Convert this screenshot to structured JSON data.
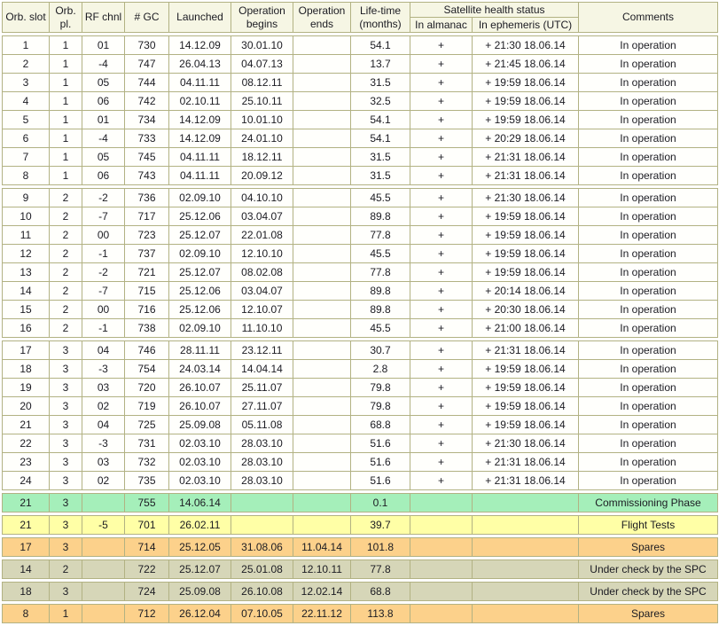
{
  "colors": {
    "border": "#b2b283",
    "header_bg": "#f6f6e4",
    "in_operation_bg": "#fffffc",
    "commissioning_bg": "#a5efba",
    "flight_tests_bg": "#ffffa6",
    "spares_bg": "#fcd18b",
    "under_check_bg": "#d6d6b8",
    "text": "#1b1b22"
  },
  "table": {
    "health_group_label": "Satellite health status",
    "columns": [
      {
        "key": "slot",
        "label": "Orb. slot"
      },
      {
        "key": "plane",
        "label": "Orb. pl."
      },
      {
        "key": "rf-chnl",
        "label": "RF chnl"
      },
      {
        "key": "gc",
        "label": "# GC"
      },
      {
        "key": "launched",
        "label": "Launched"
      },
      {
        "key": "op-begins",
        "label": "Operation begins"
      },
      {
        "key": "op-ends",
        "label": "Operation ends"
      },
      {
        "key": "lifetime",
        "label": "Life-time (months)"
      },
      {
        "key": "almanac",
        "label": "In almanac"
      },
      {
        "key": "ephemeris",
        "label": "In ephemeris (UTC)"
      },
      {
        "key": "comments",
        "label": "Comments"
      }
    ],
    "blocks": [
      {
        "name": "plane-1",
        "style": "normal",
        "rows": [
          [
            "1",
            "1",
            "01",
            "730",
            "14.12.09",
            "30.01.10",
            "",
            "54.1",
            "+",
            "+ 21:30 18.06.14",
            "In operation"
          ],
          [
            "2",
            "1",
            "-4",
            "747",
            "26.04.13",
            "04.07.13",
            "",
            "13.7",
            "+",
            "+ 21:45 18.06.14",
            "In operation"
          ],
          [
            "3",
            "1",
            "05",
            "744",
            "04.11.11",
            "08.12.11",
            "",
            "31.5",
            "+",
            "+ 19:59 18.06.14",
            "In operation"
          ],
          [
            "4",
            "1",
            "06",
            "742",
            "02.10.11",
            "25.10.11",
            "",
            "32.5",
            "+",
            "+ 19:59 18.06.14",
            "In operation"
          ],
          [
            "5",
            "1",
            "01",
            "734",
            "14.12.09",
            "10.01.10",
            "",
            "54.1",
            "+",
            "+ 19:59 18.06.14",
            "In operation"
          ],
          [
            "6",
            "1",
            "-4",
            "733",
            "14.12.09",
            "24.01.10",
            "",
            "54.1",
            "+",
            "+ 20:29 18.06.14",
            "In operation"
          ],
          [
            "7",
            "1",
            "05",
            "745",
            "04.11.11",
            "18.12.11",
            "",
            "31.5",
            "+",
            "+ 21:31 18.06.14",
            "In operation"
          ],
          [
            "8",
            "1",
            "06",
            "743",
            "04.11.11",
            "20.09.12",
            "",
            "31.5",
            "+",
            "+ 21:31 18.06.14",
            "In operation"
          ]
        ]
      },
      {
        "name": "plane-2",
        "style": "normal",
        "rows": [
          [
            "9",
            "2",
            "-2",
            "736",
            "02.09.10",
            "04.10.10",
            "",
            "45.5",
            "+",
            "+ 21:30 18.06.14",
            "In operation"
          ],
          [
            "10",
            "2",
            "-7",
            "717",
            "25.12.06",
            "03.04.07",
            "",
            "89.8",
            "+",
            "+ 19:59 18.06.14",
            "In operation"
          ],
          [
            "11",
            "2",
            "00",
            "723",
            "25.12.07",
            "22.01.08",
            "",
            "77.8",
            "+",
            "+ 19:59 18.06.14",
            "In operation"
          ],
          [
            "12",
            "2",
            "-1",
            "737",
            "02.09.10",
            "12.10.10",
            "",
            "45.5",
            "+",
            "+ 19:59 18.06.14",
            "In operation"
          ],
          [
            "13",
            "2",
            "-2",
            "721",
            "25.12.07",
            "08.02.08",
            "",
            "77.8",
            "+",
            "+ 19:59 18.06.14",
            "In operation"
          ],
          [
            "14",
            "2",
            "-7",
            "715",
            "25.12.06",
            "03.04.07",
            "",
            "89.8",
            "+",
            "+ 20:14 18.06.14",
            "In operation"
          ],
          [
            "15",
            "2",
            "00",
            "716",
            "25.12.06",
            "12.10.07",
            "",
            "89.8",
            "+",
            "+ 20:30 18.06.14",
            "In operation"
          ],
          [
            "16",
            "2",
            "-1",
            "738",
            "02.09.10",
            "11.10.10",
            "",
            "45.5",
            "+",
            "+ 21:00 18.06.14",
            "In operation"
          ]
        ]
      },
      {
        "name": "plane-3",
        "style": "normal",
        "rows": [
          [
            "17",
            "3",
            "04",
            "746",
            "28.11.11",
            "23.12.11",
            "",
            "30.7",
            "+",
            "+ 21:31 18.06.14",
            "In operation"
          ],
          [
            "18",
            "3",
            "-3",
            "754",
            "24.03.14",
            "14.04.14",
            "",
            "2.8",
            "+",
            "+ 19:59 18.06.14",
            "In operation"
          ],
          [
            "19",
            "3",
            "03",
            "720",
            "26.10.07",
            "25.11.07",
            "",
            "79.8",
            "+",
            "+ 19:59 18.06.14",
            "In operation"
          ],
          [
            "20",
            "3",
            "02",
            "719",
            "26.10.07",
            "27.11.07",
            "",
            "79.8",
            "+",
            "+ 19:59 18.06.14",
            "In operation"
          ],
          [
            "21",
            "3",
            "04",
            "725",
            "25.09.08",
            "05.11.08",
            "",
            "68.8",
            "+",
            "+ 19:59 18.06.14",
            "In operation"
          ],
          [
            "22",
            "3",
            "-3",
            "731",
            "02.03.10",
            "28.03.10",
            "",
            "51.6",
            "+",
            "+ 21:30 18.06.14",
            "In operation"
          ],
          [
            "23",
            "3",
            "03",
            "732",
            "02.03.10",
            "28.03.10",
            "",
            "51.6",
            "+",
            "+ 21:31 18.06.14",
            "In operation"
          ],
          [
            "24",
            "3",
            "02",
            "735",
            "02.03.10",
            "28.03.10",
            "",
            "51.6",
            "+",
            "+ 21:31 18.06.14",
            "In operation"
          ]
        ]
      },
      {
        "name": "commissioning-755",
        "style": "green",
        "rows": [
          [
            "21",
            "3",
            "",
            "755",
            "14.06.14",
            "",
            "",
            "0.1",
            "",
            "",
            "Commissioning Phase"
          ]
        ]
      },
      {
        "name": "flight-tests-701",
        "style": "yellow",
        "rows": [
          [
            "21",
            "3",
            "-5",
            "701",
            "26.02.11",
            "",
            "",
            "39.7",
            "",
            "",
            "Flight Tests"
          ]
        ]
      },
      {
        "name": "spares-714",
        "style": "orange",
        "rows": [
          [
            "17",
            "3",
            "",
            "714",
            "25.12.05",
            "31.08.06",
            "11.04.14",
            "101.8",
            "",
            "",
            "Spares"
          ]
        ]
      },
      {
        "name": "under-check-722",
        "style": "gray",
        "rows": [
          [
            "14",
            "2",
            "",
            "722",
            "25.12.07",
            "25.01.08",
            "12.10.11",
            "77.8",
            "",
            "",
            "Under check by the SPC"
          ]
        ]
      },
      {
        "name": "under-check-724",
        "style": "gray",
        "rows": [
          [
            "18",
            "3",
            "",
            "724",
            "25.09.08",
            "26.10.08",
            "12.02.14",
            "68.8",
            "",
            "",
            "Under check by the SPC"
          ]
        ]
      },
      {
        "name": "spares-712",
        "style": "orange",
        "rows": [
          [
            "8",
            "1",
            "",
            "712",
            "26.12.04",
            "07.10.05",
            "22.11.12",
            "113.8",
            "",
            "",
            "Spares"
          ]
        ]
      }
    ]
  }
}
